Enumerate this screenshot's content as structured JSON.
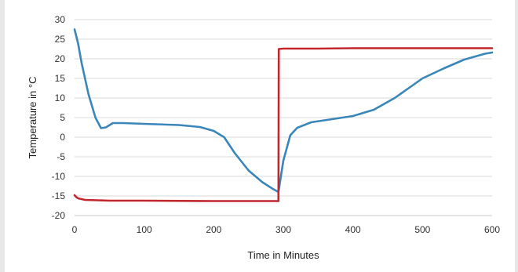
{
  "chart_data": {
    "type": "line",
    "title": "",
    "xlabel": "Time in Minutes",
    "ylabel": "Temperature in °C",
    "xlim": [
      0,
      600
    ],
    "ylim": [
      -20,
      30
    ],
    "x_ticks": [
      "0",
      "100",
      "200",
      "300",
      "400",
      "500",
      "600"
    ],
    "y_ticks": [
      "30",
      "25",
      "20",
      "15",
      "10",
      "5",
      "0",
      "-5",
      "-10",
      "-15",
      "-20"
    ],
    "grid": "horizontal",
    "legend": "none",
    "series": [
      {
        "color": "#3a86b9",
        "x": [
          0,
          5,
          10,
          20,
          30,
          38,
          45,
          55,
          70,
          100,
          150,
          180,
          200,
          215,
          230,
          250,
          270,
          285,
          293,
          300,
          310,
          320,
          340,
          370,
          400,
          430,
          460,
          480,
          500,
          530,
          560,
          590,
          600
        ],
        "y": [
          27.5,
          24,
          19,
          11,
          5,
          2.3,
          2.5,
          3.6,
          3.6,
          3.4,
          3.1,
          2.6,
          1.6,
          0,
          -4,
          -8.5,
          -11.5,
          -13.2,
          -14,
          -6,
          0.5,
          2.4,
          3.8,
          4.6,
          5.4,
          7,
          10,
          12.5,
          15,
          17.5,
          19.8,
          21.3,
          21.6
        ]
      },
      {
        "color": "#c1272d",
        "x": [
          0,
          2,
          5,
          15,
          50,
          100,
          200,
          250,
          293,
          293.5,
          300,
          350,
          400,
          500,
          600
        ],
        "y": [
          -14.8,
          -15.2,
          -15.6,
          -16,
          -16.2,
          -16.2,
          -16.3,
          -16.3,
          -16.3,
          22.5,
          22.6,
          22.6,
          22.7,
          22.7,
          22.7
        ]
      }
    ]
  }
}
